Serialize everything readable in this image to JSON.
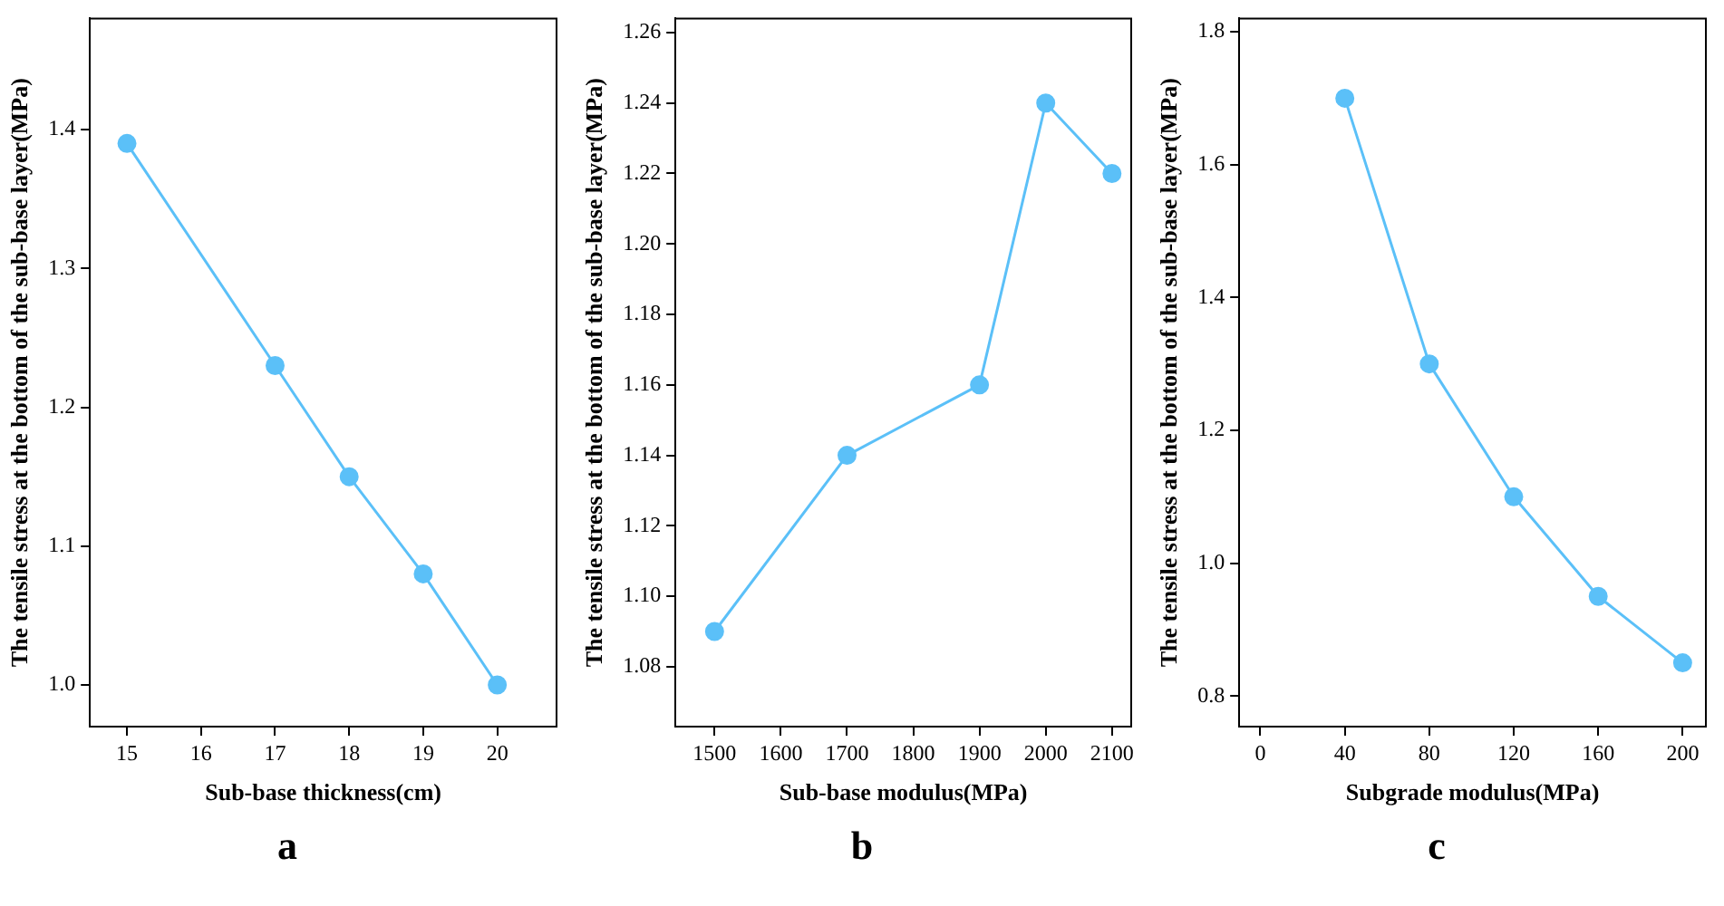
{
  "chart_data": [
    {
      "type": "line",
      "xlabel": "Sub-base thickness(cm)",
      "ylabel": "The tensile stress at the bottom of the sub-base layer(MPa)",
      "x": [
        15,
        17,
        18,
        19,
        20
      ],
      "values": [
        1.39,
        1.23,
        1.15,
        1.08,
        1.0
      ],
      "color": "#5bc0f8",
      "marker": "circle",
      "grid": false,
      "legend": false,
      "xlim": [
        14.5,
        20.8
      ],
      "ylim": [
        0.97,
        1.48
      ],
      "xticks": [
        15,
        16,
        17,
        18,
        19,
        20
      ],
      "yticks": [
        {
          "value": 1,
          "label": "1.0"
        },
        1.1,
        1.2,
        1.3,
        1.4
      ],
      "annotations": [
        "a"
      ]
    },
    {
      "type": "line",
      "xlabel": "Sub-base modulus(MPa)",
      "ylabel": "The tensile stress at the bottom of the sub-base layer(MPa)",
      "x": [
        1500,
        1700,
        1900,
        2000,
        2100
      ],
      "values": [
        1.09,
        1.14,
        1.16,
        1.24,
        1.22
      ],
      "color": "#5bc0f8",
      "marker": "circle",
      "grid": false,
      "legend": false,
      "xlim": [
        1441,
        2129
      ],
      "ylim": [
        1.063,
        1.264
      ],
      "xticks": [
        1500,
        1600,
        1700,
        1800,
        1900,
        2000,
        2100
      ],
      "yticks": [
        1.08,
        {
          "value": 1.1,
          "label": "1.10"
        },
        1.12,
        1.14,
        1.16,
        1.18,
        {
          "value": 1.2,
          "label": "1.20"
        },
        1.22,
        1.24,
        1.26
      ],
      "annotations": [
        "b"
      ]
    },
    {
      "type": "line",
      "xlabel": "Subgrade modulus(MPa)",
      "ylabel": "The tensile stress at the bottom of the sub-base layer(MPa)",
      "x": [
        40,
        80,
        120,
        160,
        200
      ],
      "values": [
        1.7,
        1.3,
        1.1,
        0.95,
        0.85
      ],
      "color": "#5bc0f8",
      "marker": "circle",
      "grid": false,
      "legend": false,
      "xlim": [
        -10,
        211
      ],
      "ylim": [
        0.754,
        1.82
      ],
      "xticks": [
        0,
        40,
        80,
        120,
        160,
        200
      ],
      "yticks": [
        0.8,
        {
          "value": 1,
          "label": "1.0"
        },
        1.2,
        1.4,
        1.6,
        1.8
      ],
      "annotations": [
        "c"
      ]
    }
  ]
}
